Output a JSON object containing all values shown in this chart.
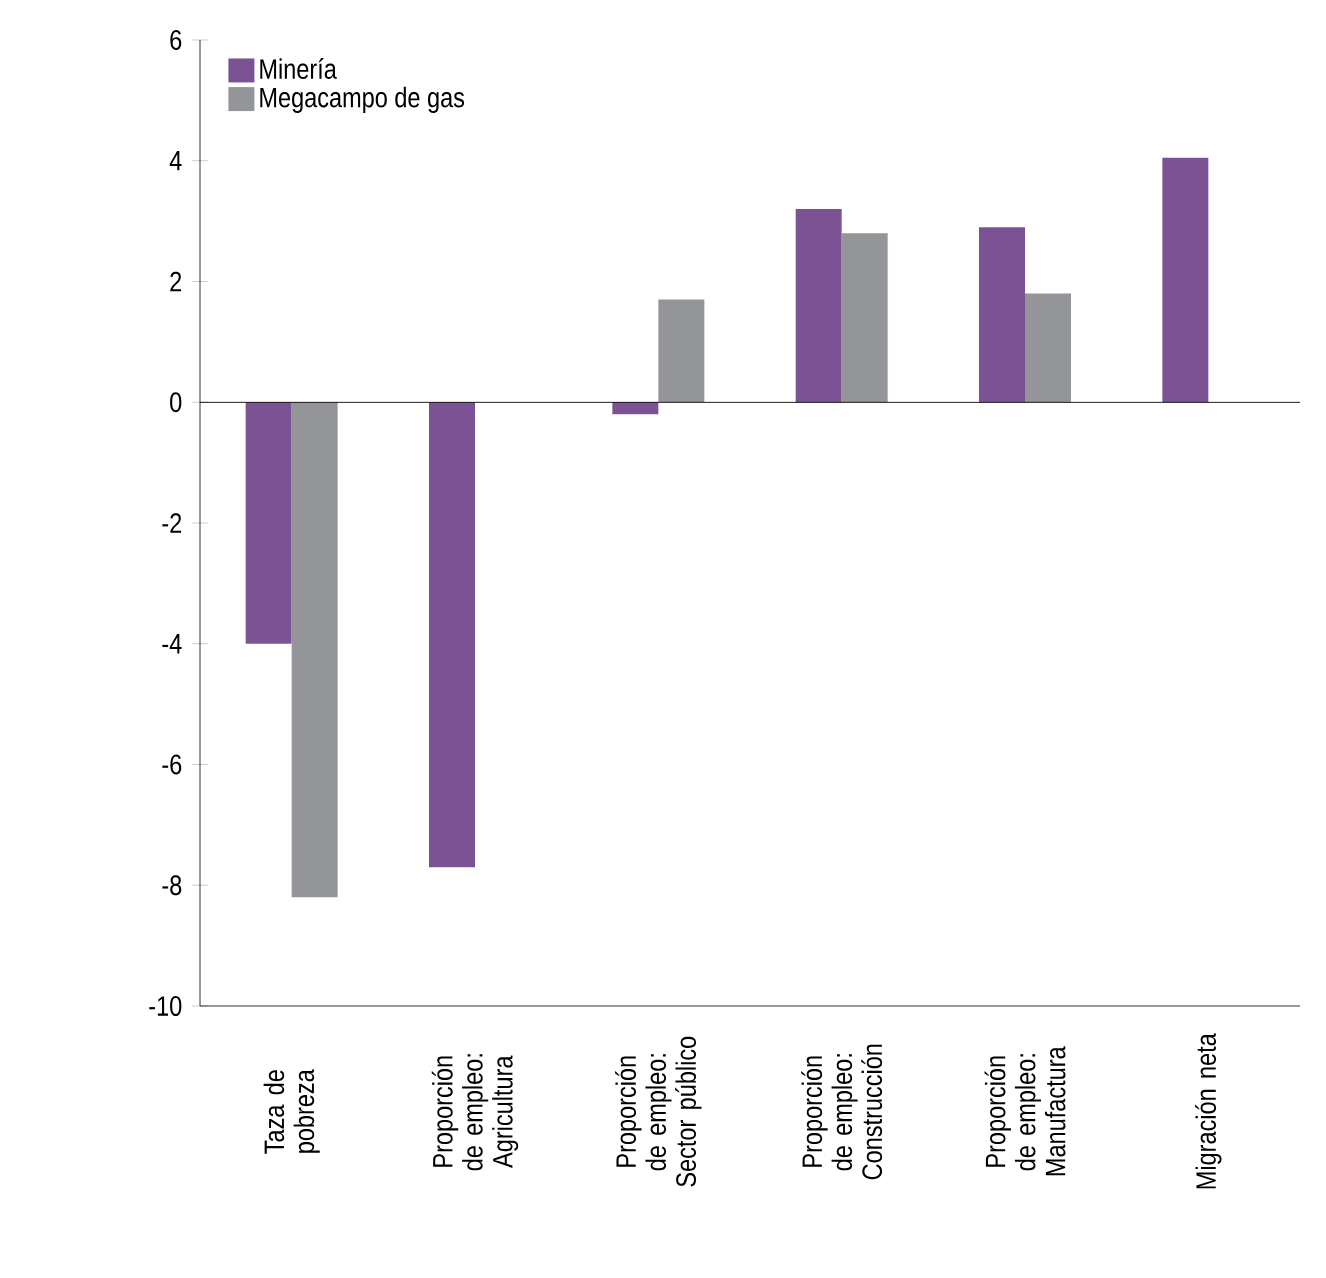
{
  "chart_data": {
    "type": "bar",
    "categories": [
      "Taza de pobreza",
      "Proporción de empleo: Agricultura",
      "Proporción de empleo: Sector público",
      "Proporción de empleo: Construcción",
      "Proporción de empleo: Manufactura",
      "Migración neta"
    ],
    "series": [
      {
        "name": "Minería",
        "color": "#7b5394",
        "values": [
          -4.0,
          -7.7,
          -0.2,
          3.2,
          2.9,
          4.05
        ]
      },
      {
        "name": "Megacampo de gas",
        "color": "#939598",
        "values": [
          -8.2,
          null,
          1.7,
          2.8,
          1.8,
          null
        ]
      }
    ],
    "ylim": [
      -10,
      6
    ],
    "yticks": [
      -10,
      -8,
      -6,
      -4,
      -2,
      0,
      2,
      4,
      6
    ],
    "ref_lines": [
      {
        "axis": "y",
        "value": 0,
        "color": "#000000"
      }
    ],
    "legend": "top left",
    "grid": false
  }
}
